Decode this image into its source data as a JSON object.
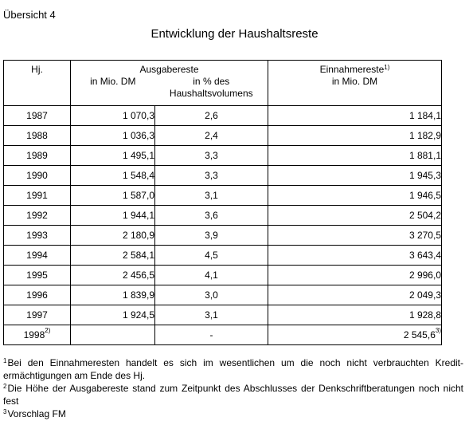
{
  "overview_label": "Übersicht 4",
  "title": "Entwicklung der Haushaltsreste",
  "header": {
    "year": "Hj.",
    "ausgabereste": "Ausgabereste",
    "in_mio_dm": "in Mio. DM",
    "pct_line1": "in % des",
    "pct_line2": "Haushaltsvolumens",
    "einnahmereste": "Einnahmereste",
    "einnahmereste_sup": "1)",
    "ein_in_mio_dm": "in Mio. DM"
  },
  "rows": [
    {
      "year": "1987",
      "year_sup": "",
      "dm": "1 070,3",
      "pct": "2,6",
      "ein": "1 184,1",
      "ein_sup": ""
    },
    {
      "year": "1988",
      "year_sup": "",
      "dm": "1 036,3",
      "pct": "2,4",
      "ein": "1 182,9",
      "ein_sup": ""
    },
    {
      "year": "1989",
      "year_sup": "",
      "dm": "1 495,1",
      "pct": "3,3",
      "ein": "1 881,1",
      "ein_sup": ""
    },
    {
      "year": "1990",
      "year_sup": "",
      "dm": "1 548,4",
      "pct": "3,3",
      "ein": "1 945,3",
      "ein_sup": ""
    },
    {
      "year": "1991",
      "year_sup": "",
      "dm": "1 587,0",
      "pct": "3,1",
      "ein": "1 946,5",
      "ein_sup": ""
    },
    {
      "year": "1992",
      "year_sup": "",
      "dm": "1 944,1",
      "pct": "3,6",
      "ein": "2 504,2",
      "ein_sup": ""
    },
    {
      "year": "1993",
      "year_sup": "",
      "dm": "2 180,9",
      "pct": "3,9",
      "ein": "3 270,5",
      "ein_sup": ""
    },
    {
      "year": "1994",
      "year_sup": "",
      "dm": "2 584,1",
      "pct": "4,5",
      "ein": "3 643,4",
      "ein_sup": ""
    },
    {
      "year": "1995",
      "year_sup": "",
      "dm": "2 456,5",
      "pct": "4,1",
      "ein": "2 996,0",
      "ein_sup": ""
    },
    {
      "year": "1996",
      "year_sup": "",
      "dm": "1 839,9",
      "pct": "3,0",
      "ein": "2 049,3",
      "ein_sup": ""
    },
    {
      "year": "1997",
      "year_sup": "",
      "dm": "1 924,5",
      "pct": "3,1",
      "ein": "1 928,8",
      "ein_sup": ""
    },
    {
      "year": "1998",
      "year_sup": "2)",
      "dm": "",
      "pct": "-",
      "ein": "2 545,6",
      "ein_sup": "3)"
    }
  ],
  "footnotes": [
    {
      "num": "1",
      "text": "Bei den Einnahmeresten  handelt es sich im wesentlichen  um die noch nicht verbrauchten  Kredit-ermächtigungen am Ende des Hj."
    },
    {
      "num": "2",
      "text": "Die Höhe der Ausgabereste stand zum Zeitpunkt  des Abschlusses der Denkschriftberatungen noch nicht fest"
    },
    {
      "num": "3",
      "text": "Vorschlag FM"
    }
  ]
}
